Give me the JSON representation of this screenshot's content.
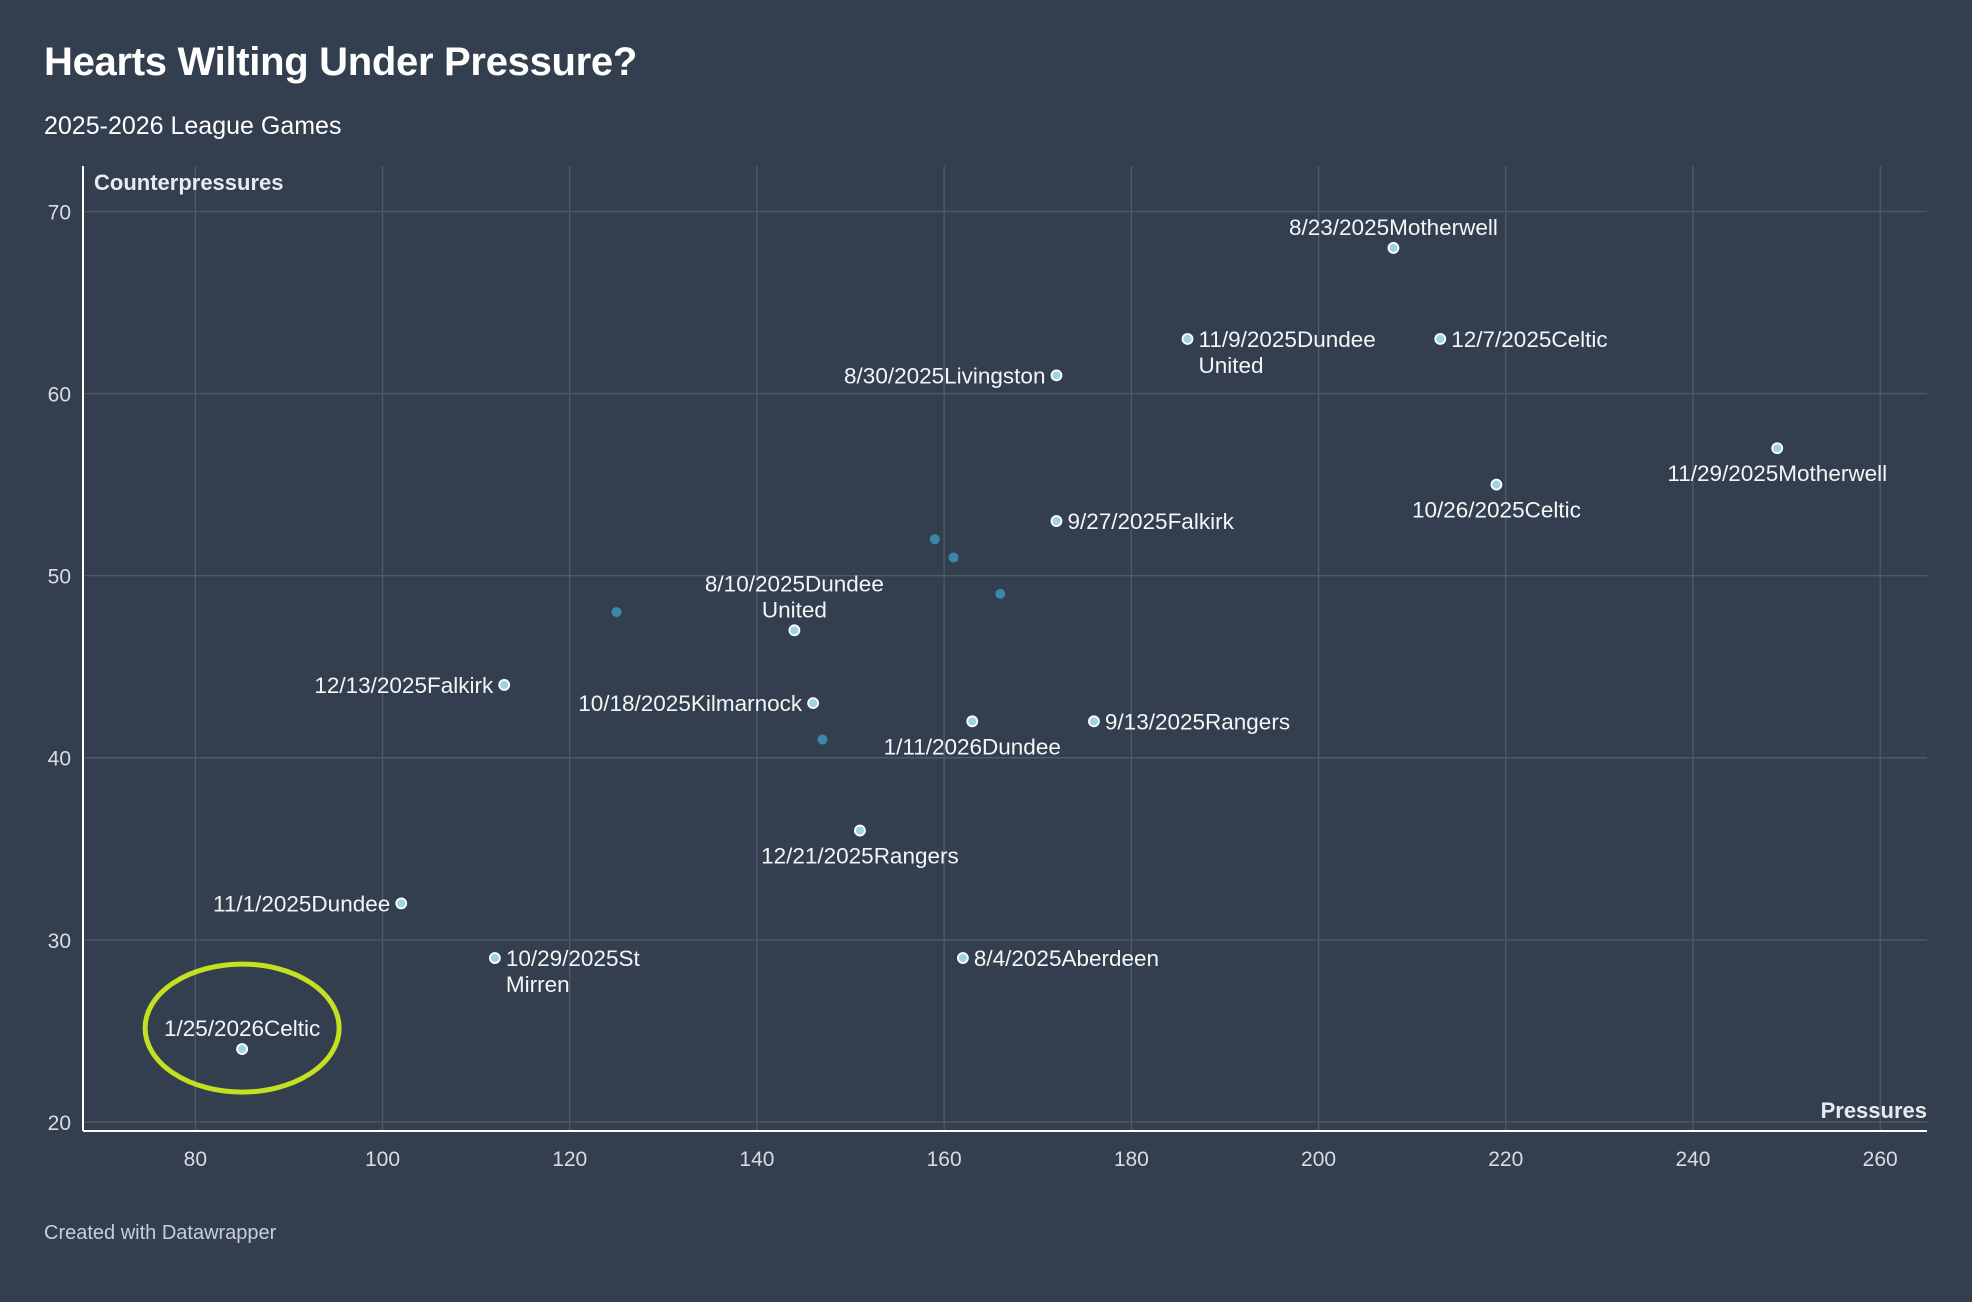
{
  "title": "Hearts Wilting Under Pressure?",
  "subtitle": "2025-2026 League Games",
  "footer": "Created with Datawrapper",
  "colors": {
    "background": "#333e4e",
    "grid": "#4e5a69",
    "axis": "#ffffff",
    "point_fill": "#9fd3e4",
    "point_stroke": "#ffffff",
    "unlabeled_point": "#3b87a6",
    "highlight": "#c4e021"
  },
  "chart_data": {
    "type": "scatter",
    "title": "Hearts Wilting Under Pressure?",
    "subtitle": "2025-2026 League Games",
    "xlabel": "Pressures",
    "ylabel": "Counterpressures",
    "xlim": [
      68,
      265
    ],
    "ylim": [
      19.5,
      72.5
    ],
    "xticks": [
      80,
      100,
      120,
      140,
      160,
      180,
      200,
      220,
      240,
      260
    ],
    "yticks": [
      20,
      30,
      40,
      50,
      60,
      70
    ],
    "grid": true,
    "highlighted_point": "1/25/2026Celtic",
    "points": [
      {
        "x": 208,
        "y": 68,
        "lines": [
          "8/23/2025Motherwell"
        ],
        "pos": "above"
      },
      {
        "x": 186,
        "y": 63,
        "lines": [
          "11/9/2025Dundee",
          "United"
        ],
        "pos": "right"
      },
      {
        "x": 213,
        "y": 63,
        "lines": [
          "12/7/2025Celtic"
        ],
        "pos": "right"
      },
      {
        "x": 172,
        "y": 61,
        "lines": [
          "8/30/2025Livingston"
        ],
        "pos": "left"
      },
      {
        "x": 249,
        "y": 57,
        "lines": [
          "11/29/2025Motherwell"
        ],
        "pos": "below"
      },
      {
        "x": 219,
        "y": 55,
        "lines": [
          "10/26/2025Celtic"
        ],
        "pos": "below"
      },
      {
        "x": 172,
        "y": 53,
        "lines": [
          "9/27/2025Falkirk"
        ],
        "pos": "right"
      },
      {
        "x": 144,
        "y": 47,
        "lines": [
          "8/10/2025Dundee",
          "United"
        ],
        "pos": "above"
      },
      {
        "x": 113,
        "y": 44,
        "lines": [
          "12/13/2025Falkirk"
        ],
        "pos": "left"
      },
      {
        "x": 146,
        "y": 43,
        "lines": [
          "10/18/2025Kilmarnock"
        ],
        "pos": "left"
      },
      {
        "x": 163,
        "y": 42,
        "lines": [
          "1/11/2026Dundee"
        ],
        "pos": "below"
      },
      {
        "x": 176,
        "y": 42,
        "lines": [
          "9/13/2025Rangers"
        ],
        "pos": "right"
      },
      {
        "x": 151,
        "y": 36,
        "lines": [
          "12/21/2025Rangers"
        ],
        "pos": "below"
      },
      {
        "x": 102,
        "y": 32,
        "lines": [
          "11/1/2025Dundee"
        ],
        "pos": "left"
      },
      {
        "x": 112,
        "y": 29,
        "lines": [
          "10/29/2025St",
          "Mirren"
        ],
        "pos": "right"
      },
      {
        "x": 162,
        "y": 29,
        "lines": [
          "8/4/2025Aberdeen"
        ],
        "pos": "right"
      },
      {
        "x": 85,
        "y": 24,
        "lines": [
          "1/25/2026Celtic"
        ],
        "pos": "above"
      }
    ],
    "unlabeled_points": [
      {
        "x": 125,
        "y": 48
      },
      {
        "x": 159,
        "y": 52
      },
      {
        "x": 161,
        "y": 51
      },
      {
        "x": 166,
        "y": 49
      },
      {
        "x": 147,
        "y": 41
      }
    ]
  }
}
